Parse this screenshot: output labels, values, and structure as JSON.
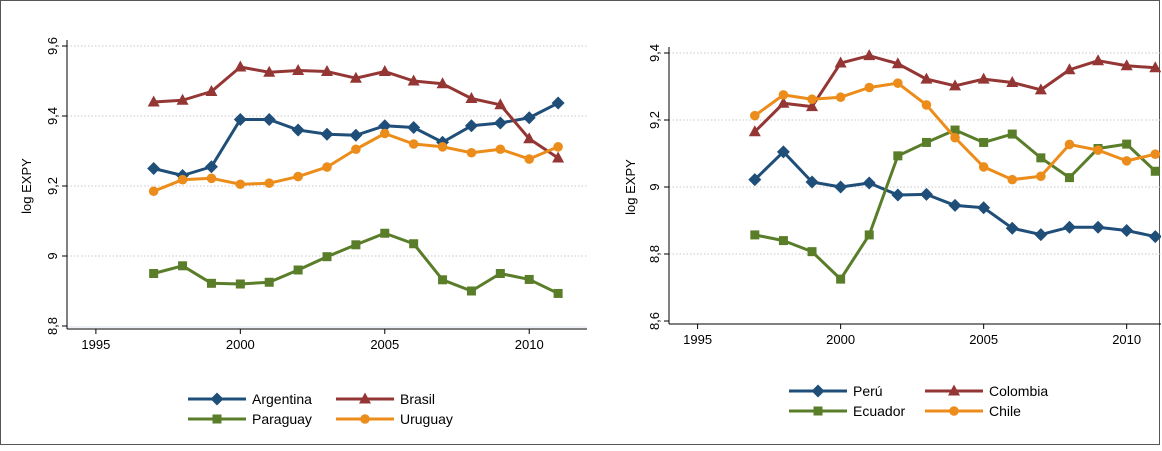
{
  "chart_data": [
    {
      "type": "line",
      "ylabel": "log EXPY",
      "xlabel": "",
      "xlim": [
        1994,
        2012
      ],
      "ylim": [
        8.8,
        9.6
      ],
      "x_ticks": [
        1995,
        2000,
        2005,
        2010
      ],
      "x_tick_labels": [
        "1995",
        "2000",
        "2005",
        "2010"
      ],
      "y_ticks": [
        8.8,
        9,
        9.2,
        9.4,
        9.6
      ],
      "y_tick_labels": [
        "8,8",
        "9",
        "9,2",
        "9,4",
        "9,6"
      ],
      "grid": true,
      "legend": "bottom",
      "x": [
        1997,
        1998,
        1999,
        2000,
        2001,
        2002,
        2003,
        2004,
        2005,
        2006,
        2007,
        2008,
        2009,
        2010,
        2011
      ],
      "series": [
        {
          "name": "Argentina",
          "color": "#1f4e79",
          "marker": "diamond",
          "values": [
            9.25,
            9.23,
            9.255,
            9.39,
            9.39,
            9.36,
            9.348,
            9.345,
            9.372,
            9.367,
            9.325,
            9.372,
            9.38,
            9.395,
            9.437
          ]
        },
        {
          "name": "Brasil",
          "color": "#943634",
          "marker": "triangle",
          "values": [
            9.44,
            9.445,
            9.47,
            9.54,
            9.525,
            9.53,
            9.527,
            9.508,
            9.527,
            9.5,
            9.492,
            9.45,
            9.432,
            9.335,
            9.28
          ]
        },
        {
          "name": "Paraguay",
          "color": "#5a7d2a",
          "marker": "square",
          "values": [
            8.95,
            8.972,
            8.922,
            8.92,
            8.925,
            8.96,
            8.998,
            9.032,
            9.065,
            9.035,
            8.932,
            8.9,
            8.95,
            8.933,
            8.893
          ]
        },
        {
          "name": "Uruguay",
          "color": "#ec8d1b",
          "marker": "circle",
          "values": [
            9.185,
            9.218,
            9.222,
            9.205,
            9.208,
            9.227,
            9.254,
            9.305,
            9.35,
            9.32,
            9.312,
            9.295,
            9.305,
            9.277,
            9.312
          ]
        }
      ]
    },
    {
      "type": "line",
      "ylabel": "log EXPY",
      "xlabel": "",
      "xlim": [
        1994,
        2011.2
      ],
      "ylim": [
        8.6,
        9.4
      ],
      "x_ticks": [
        1995,
        2000,
        2005,
        2010
      ],
      "x_tick_labels": [
        "1995",
        "2000",
        "2005",
        "2010"
      ],
      "y_ticks": [
        8.6,
        8.8,
        9,
        9.2,
        9.4
      ],
      "y_tick_labels": [
        "8,6",
        "8,8",
        "9",
        "9,2",
        "9,4"
      ],
      "grid": true,
      "legend": "bottom",
      "x": [
        1997,
        1998,
        1999,
        2000,
        2001,
        2002,
        2003,
        2004,
        2005,
        2006,
        2007,
        2008,
        2009,
        2010,
        2011
      ],
      "series": [
        {
          "name": "Perú",
          "color": "#1f4e79",
          "marker": "diamond",
          "values": [
            9.022,
            9.105,
            9.015,
            9.0,
            9.012,
            8.976,
            8.978,
            8.945,
            8.938,
            8.877,
            8.858,
            8.88,
            8.88,
            8.87,
            8.852
          ]
        },
        {
          "name": "Colombia",
          "color": "#943634",
          "marker": "triangle",
          "values": [
            9.165,
            9.25,
            9.24,
            9.37,
            9.392,
            9.368,
            9.322,
            9.302,
            9.322,
            9.312,
            9.29,
            9.35,
            9.377,
            9.362,
            9.356
          ]
        },
        {
          "name": "Ecuador",
          "color": "#5a7d2a",
          "marker": "square",
          "values": [
            8.857,
            8.84,
            8.807,
            8.725,
            8.857,
            9.093,
            9.133,
            9.17,
            9.133,
            9.158,
            9.087,
            9.028,
            9.115,
            9.128,
            9.047
          ]
        },
        {
          "name": "Chile",
          "color": "#ec8d1b",
          "marker": "circle",
          "values": [
            9.213,
            9.275,
            9.262,
            9.268,
            9.297,
            9.31,
            9.245,
            9.147,
            9.06,
            9.022,
            9.032,
            9.127,
            9.11,
            9.078,
            9.098
          ]
        }
      ]
    }
  ]
}
